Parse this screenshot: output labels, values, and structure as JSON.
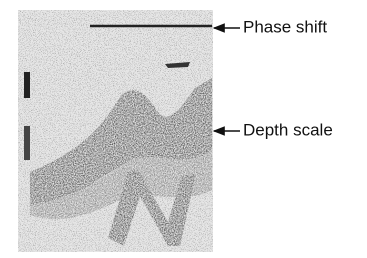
{
  "annotations": [
    {
      "label": "Phase shift"
    },
    {
      "label": "Depth scale"
    }
  ]
}
